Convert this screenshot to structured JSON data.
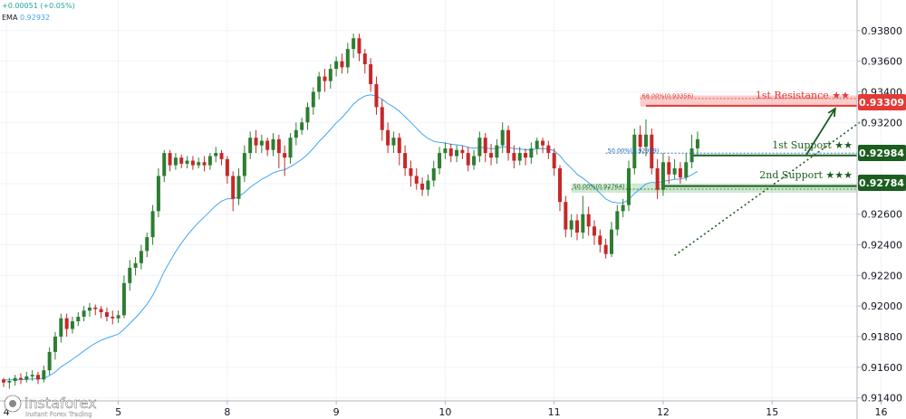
{
  "header": {
    "change": "+0.00051 (+0.05%)",
    "ema_label": "EMA",
    "ema_value": "0.92932"
  },
  "watermark": {
    "brand": "instaforex",
    "tagline": "Instant Forex Trading"
  },
  "colors": {
    "up": "#26a69a",
    "candle_up": "#2e7d32",
    "candle_down": "#c62828",
    "ema": "#42a5f5",
    "support": "#1b5e20",
    "resistance": "#e53935"
  },
  "chart_data": {
    "type": "candlestick",
    "ylim": [
      0.9138,
      0.94
    ],
    "y_ticks": [
      0.914,
      0.916,
      0.918,
      0.92,
      0.922,
      0.924,
      0.926,
      0.928,
      0.93,
      0.932,
      0.934,
      0.936,
      0.938
    ],
    "y_tick_labels": [
      "0.91400",
      "0.91600",
      "0.91800",
      "0.92000",
      "0.92200",
      "0.92400",
      "0.92600",
      "0.92800",
      "0.93000",
      "0.93200",
      "0.93400",
      "0.93600",
      "0.93800"
    ],
    "x_ticks": [
      {
        "label": "4",
        "x": 0.5
      },
      {
        "label": "5",
        "x": 20
      },
      {
        "label": "8",
        "x": 39
      },
      {
        "label": "9",
        "x": 58
      },
      {
        "label": "10",
        "x": 77
      },
      {
        "label": "11",
        "x": 96
      },
      {
        "label": "12",
        "x": 115
      },
      {
        "label": "15",
        "x": 134
      },
      {
        "label": "16",
        "x": 153
      }
    ],
    "levels": {
      "resistance_1": {
        "label": "1st Resistance ★★",
        "value": 0.93309,
        "value_label": "0.93309"
      },
      "support_1": {
        "label": "1st Support ★★",
        "value": 0.92984,
        "value_label": "0.92984"
      },
      "support_2": {
        "label": "2nd Support ★★★",
        "value": 0.92784,
        "value_label": "0.92784"
      }
    },
    "fibonacci": [
      {
        "label": "68.00%(0.93356)",
        "value": 0.93356
      },
      {
        "label": "50.00%(0.92999)",
        "value": 0.92999
      },
      {
        "label": "50.00%(0.92764)",
        "value": 0.92764
      }
    ],
    "trendline": {
      "from": {
        "x": 117,
        "y": 0.9233
      },
      "to": {
        "x": 150,
        "y": 0.9322
      }
    },
    "projection_arrow": {
      "from": {
        "x": 140,
        "y": 0.9299
      },
      "to": {
        "x": 145,
        "y": 0.9329
      }
    },
    "candles": [
      [
        0,
        0.9152,
        0.915,
        0.9153,
        0.9147
      ],
      [
        1,
        0.915,
        0.9151,
        0.9153,
        0.9146
      ],
      [
        2,
        0.9151,
        0.9153,
        0.9155,
        0.9148
      ],
      [
        3,
        0.9153,
        0.9152,
        0.9156,
        0.9149
      ],
      [
        4,
        0.9152,
        0.9154,
        0.9157,
        0.915
      ],
      [
        5,
        0.9154,
        0.9155,
        0.9158,
        0.9151
      ],
      [
        6,
        0.9155,
        0.9152,
        0.9157,
        0.9149
      ],
      [
        7,
        0.9152,
        0.9158,
        0.9161,
        0.915
      ],
      [
        8,
        0.9158,
        0.917,
        0.9173,
        0.9155
      ],
      [
        9,
        0.917,
        0.918,
        0.9183,
        0.9165
      ],
      [
        10,
        0.918,
        0.9192,
        0.9195,
        0.9176
      ],
      [
        11,
        0.9192,
        0.9185,
        0.9195,
        0.918
      ],
      [
        12,
        0.9185,
        0.919,
        0.9193,
        0.9182
      ],
      [
        13,
        0.919,
        0.9193,
        0.9196,
        0.9187
      ],
      [
        14,
        0.9193,
        0.9197,
        0.92,
        0.919
      ],
      [
        15,
        0.9197,
        0.9199,
        0.9202,
        0.9193
      ],
      [
        16,
        0.9199,
        0.9198,
        0.9201,
        0.9194
      ],
      [
        17,
        0.9198,
        0.9196,
        0.92,
        0.9192
      ],
      [
        18,
        0.9196,
        0.9193,
        0.9199,
        0.919
      ],
      [
        19,
        0.9193,
        0.9192,
        0.9197,
        0.9188
      ],
      [
        20,
        0.9192,
        0.9194,
        0.9197,
        0.9189
      ],
      [
        21,
        0.9194,
        0.9215,
        0.922,
        0.9192
      ],
      [
        22,
        0.9215,
        0.9225,
        0.923,
        0.921
      ],
      [
        23,
        0.9225,
        0.9228,
        0.9232,
        0.922
      ],
      [
        24,
        0.9228,
        0.9236,
        0.924,
        0.9224
      ],
      [
        25,
        0.9236,
        0.9245,
        0.9248,
        0.9232
      ],
      [
        26,
        0.9245,
        0.9262,
        0.9266,
        0.924
      ],
      [
        27,
        0.9262,
        0.9285,
        0.929,
        0.9258
      ],
      [
        28,
        0.9285,
        0.93,
        0.9302,
        0.9281
      ],
      [
        29,
        0.93,
        0.9292,
        0.9302,
        0.9288
      ],
      [
        30,
        0.9292,
        0.9297,
        0.93,
        0.9289
      ],
      [
        31,
        0.9297,
        0.9293,
        0.9299,
        0.929
      ],
      [
        32,
        0.9293,
        0.9295,
        0.9298,
        0.929
      ],
      [
        33,
        0.9295,
        0.9292,
        0.9298,
        0.9289
      ],
      [
        34,
        0.9292,
        0.9294,
        0.9297,
        0.929
      ],
      [
        35,
        0.9294,
        0.9292,
        0.9298,
        0.9288
      ],
      [
        36,
        0.9292,
        0.9298,
        0.93,
        0.9289
      ],
      [
        37,
        0.9298,
        0.93,
        0.9304,
        0.9294
      ],
      [
        38,
        0.93,
        0.9296,
        0.9302,
        0.9292
      ],
      [
        39,
        0.9296,
        0.9285,
        0.9298,
        0.928
      ],
      [
        40,
        0.9285,
        0.927,
        0.9288,
        0.9262
      ],
      [
        41,
        0.927,
        0.9285,
        0.929,
        0.9266
      ],
      [
        42,
        0.9285,
        0.93,
        0.9305,
        0.9281
      ],
      [
        43,
        0.93,
        0.931,
        0.9314,
        0.9296
      ],
      [
        44,
        0.931,
        0.9305,
        0.9315,
        0.93
      ],
      [
        45,
        0.9305,
        0.9308,
        0.9312,
        0.93
      ],
      [
        46,
        0.9308,
        0.9302,
        0.931,
        0.9298
      ],
      [
        47,
        0.9302,
        0.9309,
        0.9313,
        0.9298
      ],
      [
        48,
        0.9309,
        0.93,
        0.9312,
        0.929
      ],
      [
        49,
        0.93,
        0.9297,
        0.9305,
        0.9285
      ],
      [
        50,
        0.9297,
        0.931,
        0.9313,
        0.9293
      ],
      [
        51,
        0.931,
        0.9315,
        0.932,
        0.9305
      ],
      [
        52,
        0.9315,
        0.932,
        0.9323,
        0.9312
      ],
      [
        53,
        0.932,
        0.933,
        0.9333,
        0.9315
      ],
      [
        54,
        0.933,
        0.934,
        0.9343,
        0.9325
      ],
      [
        55,
        0.934,
        0.935,
        0.9353,
        0.9335
      ],
      [
        56,
        0.935,
        0.9347,
        0.9355,
        0.934
      ],
      [
        57,
        0.9347,
        0.9355,
        0.9358,
        0.9342
      ],
      [
        58,
        0.9355,
        0.936,
        0.9363,
        0.935
      ],
      [
        59,
        0.936,
        0.9356,
        0.9365,
        0.9352
      ],
      [
        60,
        0.9356,
        0.9368,
        0.9372,
        0.9352
      ],
      [
        61,
        0.9368,
        0.9375,
        0.9378,
        0.9362
      ],
      [
        62,
        0.9375,
        0.9365,
        0.9378,
        0.936
      ],
      [
        63,
        0.9365,
        0.9358,
        0.9368,
        0.9352
      ],
      [
        64,
        0.9358,
        0.9345,
        0.9362,
        0.934
      ],
      [
        65,
        0.9345,
        0.933,
        0.935,
        0.9325
      ],
      [
        66,
        0.933,
        0.9315,
        0.9335,
        0.9308
      ],
      [
        67,
        0.9315,
        0.9305,
        0.932,
        0.93
      ],
      [
        68,
        0.9305,
        0.931,
        0.9314,
        0.93
      ],
      [
        69,
        0.931,
        0.93,
        0.9313,
        0.9292
      ],
      [
        70,
        0.93,
        0.929,
        0.9305,
        0.9285
      ],
      [
        71,
        0.929,
        0.9285,
        0.9295,
        0.9278
      ],
      [
        72,
        0.9285,
        0.928,
        0.929,
        0.9276
      ],
      [
        73,
        0.928,
        0.9276,
        0.9284,
        0.9272
      ],
      [
        74,
        0.9276,
        0.9282,
        0.9286,
        0.9272
      ],
      [
        75,
        0.9282,
        0.929,
        0.9295,
        0.9278
      ],
      [
        76,
        0.929,
        0.93,
        0.9304,
        0.9286
      ],
      [
        77,
        0.93,
        0.9303,
        0.9307,
        0.9296
      ],
      [
        78,
        0.9303,
        0.9298,
        0.9306,
        0.9294
      ],
      [
        79,
        0.9298,
        0.9302,
        0.9305,
        0.9294
      ],
      [
        80,
        0.9302,
        0.93,
        0.9305,
        0.9296
      ],
      [
        81,
        0.93,
        0.9292,
        0.9304,
        0.9288
      ],
      [
        82,
        0.9292,
        0.9298,
        0.9302,
        0.9289
      ],
      [
        83,
        0.9298,
        0.931,
        0.9314,
        0.9294
      ],
      [
        84,
        0.931,
        0.93,
        0.9313,
        0.9294
      ],
      [
        85,
        0.93,
        0.9297,
        0.9306,
        0.9292
      ],
      [
        86,
        0.9297,
        0.9305,
        0.9309,
        0.9293
      ],
      [
        87,
        0.9305,
        0.9315,
        0.932,
        0.93
      ],
      [
        88,
        0.9315,
        0.93,
        0.9318,
        0.9295
      ],
      [
        89,
        0.93,
        0.9295,
        0.9305,
        0.929
      ],
      [
        90,
        0.9295,
        0.93,
        0.9304,
        0.9292
      ],
      [
        91,
        0.93,
        0.9297,
        0.9303,
        0.9292
      ],
      [
        92,
        0.9297,
        0.9303,
        0.9307,
        0.9293
      ],
      [
        93,
        0.9303,
        0.9308,
        0.931,
        0.9299
      ],
      [
        94,
        0.9308,
        0.9305,
        0.931,
        0.93
      ],
      [
        95,
        0.9305,
        0.93,
        0.9308,
        0.9296
      ],
      [
        96,
        0.93,
        0.929,
        0.9303,
        0.9285
      ],
      [
        97,
        0.929,
        0.9268,
        0.9292,
        0.9262
      ],
      [
        98,
        0.9268,
        0.925,
        0.9272,
        0.9245
      ],
      [
        99,
        0.925,
        0.9256,
        0.926,
        0.9245
      ],
      [
        100,
        0.9256,
        0.9248,
        0.926,
        0.9243
      ],
      [
        101,
        0.9248,
        0.926,
        0.9272,
        0.9244
      ],
      [
        102,
        0.926,
        0.9252,
        0.9265,
        0.9246
      ],
      [
        103,
        0.9252,
        0.9246,
        0.9256,
        0.924
      ],
      [
        104,
        0.9246,
        0.924,
        0.925,
        0.9235
      ],
      [
        105,
        0.924,
        0.9234,
        0.9244,
        0.9231
      ],
      [
        106,
        0.9234,
        0.925,
        0.9255,
        0.9232
      ],
      [
        107,
        0.925,
        0.9262,
        0.9266,
        0.9246
      ],
      [
        108,
        0.9262,
        0.9266,
        0.927,
        0.9258
      ],
      [
        109,
        0.9266,
        0.929,
        0.9295,
        0.9262
      ],
      [
        110,
        0.929,
        0.9312,
        0.9316,
        0.9286
      ],
      [
        111,
        0.9312,
        0.9304,
        0.9318,
        0.93
      ],
      [
        112,
        0.9304,
        0.9312,
        0.9322,
        0.9298
      ],
      [
        113,
        0.9312,
        0.929,
        0.9316,
        0.9286
      ],
      [
        114,
        0.929,
        0.9276,
        0.9296,
        0.927
      ],
      [
        115,
        0.9276,
        0.9294,
        0.93,
        0.9272
      ],
      [
        116,
        0.9294,
        0.9286,
        0.9298,
        0.928
      ],
      [
        117,
        0.9286,
        0.929,
        0.9296,
        0.9283
      ],
      [
        118,
        0.929,
        0.9284,
        0.9294,
        0.928
      ],
      [
        119,
        0.9284,
        0.9294,
        0.93,
        0.9282
      ],
      [
        120,
        0.9294,
        0.9303,
        0.9312,
        0.929
      ],
      [
        121,
        0.9303,
        0.9309,
        0.9314,
        0.9299
      ]
    ]
  }
}
